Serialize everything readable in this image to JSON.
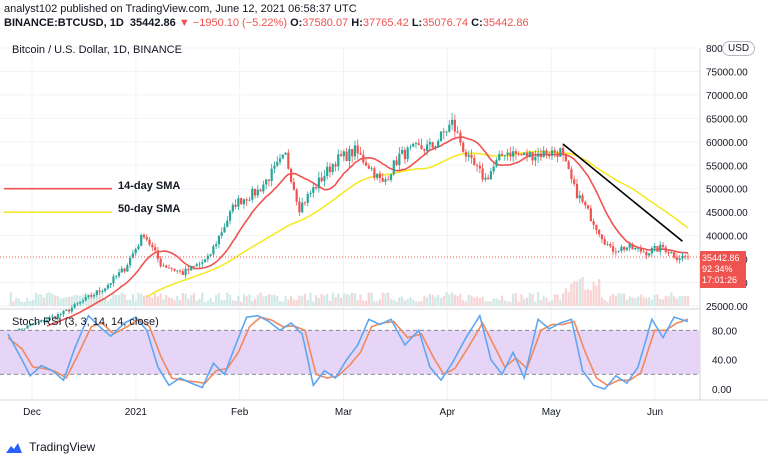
{
  "header": {
    "line1": "analyst102 published on TradingView.com, June 12, 2021 06:58:37 UTC",
    "symbol": "BINANCE:BTCUSD, 1D",
    "last": "35442.86",
    "arrow": "▼",
    "change": "−1950.10 (−5.22%)",
    "o_label": "O:",
    "o": "37580.07",
    "h_label": "H:",
    "h": "37765.42",
    "l_label": "L:",
    "l": "35076.74",
    "c_label": "C:",
    "c": "35442.86"
  },
  "chart_title": "Bitcoin / U.S. Dollar, 1D, BINANCE",
  "currency": "USD",
  "sma14_label": "14-day SMA",
  "sma50_label": "50-day SMA",
  "rsi_title": "Stoch RSI (3, 3, 14, 14, close)",
  "price_tag": {
    "price": "35442.86",
    "pct": "92.34%",
    "timer": "17:01:26"
  },
  "footer": {
    "brand": "TradingView"
  },
  "colors": {
    "up": "#26a69a",
    "down": "#ef5350",
    "sma14": "#ef5350",
    "sma50": "#f5e92a",
    "trendline": "#000000",
    "rsi_k": "#5ea7f0",
    "rsi_d": "#f08a5d",
    "rsi_band": "#e6d5f7"
  },
  "chart_data": [
    {
      "type": "candlestick",
      "title": "Bitcoin / U.S. Dollar, 1D, BINANCE",
      "x_ticks": [
        "Dec",
        "2021",
        "Feb",
        "Mar",
        "Apr",
        "May",
        "Jun"
      ],
      "y_ticks": [
        "25000.00",
        "30000.00",
        "35000.00",
        "40000.00",
        "45000.00",
        "50000.00",
        "55000.00",
        "60000.00",
        "65000.00",
        "70000.00",
        "75000.00",
        "80000.00"
      ],
      "ylim": [
        25000,
        80000
      ],
      "close_start": 19000,
      "close_end": 35442.86,
      "highlight_level": 35442.86,
      "waypoints": [
        [
          0,
          19000
        ],
        [
          20,
          23500
        ],
        [
          35,
          29000
        ],
        [
          42,
          33000
        ],
        [
          49,
          40500
        ],
        [
          55,
          34000
        ],
        [
          63,
          32000
        ],
        [
          72,
          35000
        ],
        [
          82,
          47000
        ],
        [
          90,
          49500
        ],
        [
          100,
          57000
        ],
        [
          105,
          46000
        ],
        [
          112,
          51500
        ],
        [
          118,
          56000
        ],
        [
          125,
          58000
        ],
        [
          130,
          55000
        ],
        [
          135,
          51000
        ],
        [
          141,
          57000
        ],
        [
          147,
          58500
        ],
        [
          153,
          59000
        ],
        [
          160,
          64000
        ],
        [
          166,
          56000
        ],
        [
          172,
          52000
        ],
        [
          179,
          58000
        ],
        [
          186,
          57000
        ],
        [
          192,
          57500
        ],
        [
          199,
          58000
        ],
        [
          204,
          50000
        ],
        [
          211,
          43000
        ],
        [
          217,
          37000
        ],
        [
          223,
          37500
        ],
        [
          230,
          36500
        ],
        [
          236,
          37500
        ],
        [
          241,
          35500
        ],
        [
          245,
          35442.86
        ]
      ],
      "series": [
        {
          "name": "14-day SMA",
          "label_value": 50000
        },
        {
          "name": "50-day SMA",
          "label_value": 45000
        }
      ],
      "trendline": [
        [
          200,
          59500
        ],
        [
          243,
          38800
        ]
      ]
    },
    {
      "type": "line",
      "title": "Stoch RSI (3, 3, 14, 14, close)",
      "y_ticks": [
        "0.00",
        "40.00",
        "80.00"
      ],
      "levels": [
        20,
        80
      ],
      "ylim": [
        -15,
        105
      ],
      "k_waypoints": [
        [
          0,
          75
        ],
        [
          5,
          40
        ],
        [
          8,
          18
        ],
        [
          12,
          32
        ],
        [
          16,
          25
        ],
        [
          20,
          12
        ],
        [
          24,
          55
        ],
        [
          29,
          100
        ],
        [
          33,
          85
        ],
        [
          37,
          72
        ],
        [
          42,
          90
        ],
        [
          46,
          98
        ],
        [
          50,
          80
        ],
        [
          54,
          30
        ],
        [
          58,
          5
        ],
        [
          62,
          15
        ],
        [
          66,
          8
        ],
        [
          70,
          2
        ],
        [
          74,
          35
        ],
        [
          78,
          20
        ],
        [
          82,
          60
        ],
        [
          86,
          98
        ],
        [
          90,
          100
        ],
        [
          94,
          92
        ],
        [
          98,
          80
        ],
        [
          102,
          90
        ],
        [
          106,
          75
        ],
        [
          110,
          5
        ],
        [
          114,
          25
        ],
        [
          118,
          15
        ],
        [
          122,
          40
        ],
        [
          126,
          60
        ],
        [
          130,
          95
        ],
        [
          134,
          88
        ],
        [
          138,
          95
        ],
        [
          143,
          60
        ],
        [
          148,
          80
        ],
        [
          152,
          30
        ],
        [
          156,
          12
        ],
        [
          160,
          35
        ],
        [
          165,
          70
        ],
        [
          170,
          100
        ],
        [
          174,
          40
        ],
        [
          178,
          20
        ],
        [
          182,
          50
        ],
        [
          186,
          15
        ],
        [
          191,
          95
        ],
        [
          195,
          82
        ],
        [
          199,
          90
        ],
        [
          203,
          95
        ],
        [
          207,
          25
        ],
        [
          211,
          5
        ],
        [
          215,
          0
        ],
        [
          219,
          18
        ],
        [
          223,
          8
        ],
        [
          227,
          30
        ],
        [
          232,
          95
        ],
        [
          236,
          70
        ],
        [
          240,
          98
        ],
        [
          245,
          92
        ]
      ],
      "d_waypoints": [
        [
          0,
          70
        ],
        [
          5,
          55
        ],
        [
          9,
          30
        ],
        [
          13,
          28
        ],
        [
          17,
          24
        ],
        [
          21,
          15
        ],
        [
          25,
          45
        ],
        [
          30,
          85
        ],
        [
          34,
          90
        ],
        [
          38,
          75
        ],
        [
          43,
          85
        ],
        [
          47,
          95
        ],
        [
          51,
          85
        ],
        [
          55,
          45
        ],
        [
          59,
          15
        ],
        [
          63,
          12
        ],
        [
          67,
          10
        ],
        [
          71,
          8
        ],
        [
          75,
          25
        ],
        [
          79,
          28
        ],
        [
          83,
          50
        ],
        [
          87,
          85
        ],
        [
          91,
          98
        ],
        [
          95,
          94
        ],
        [
          99,
          85
        ],
        [
          103,
          86
        ],
        [
          107,
          80
        ],
        [
          111,
          20
        ],
        [
          115,
          15
        ],
        [
          119,
          18
        ],
        [
          123,
          32
        ],
        [
          127,
          50
        ],
        [
          131,
          85
        ],
        [
          135,
          90
        ],
        [
          139,
          92
        ],
        [
          144,
          70
        ],
        [
          149,
          75
        ],
        [
          153,
          45
        ],
        [
          157,
          20
        ],
        [
          161,
          28
        ],
        [
          166,
          58
        ],
        [
          171,
          90
        ],
        [
          175,
          60
        ],
        [
          179,
          30
        ],
        [
          183,
          42
        ],
        [
          187,
          28
        ],
        [
          192,
          80
        ],
        [
          196,
          88
        ],
        [
          200,
          88
        ],
        [
          204,
          92
        ],
        [
          208,
          50
        ],
        [
          212,
          15
        ],
        [
          216,
          5
        ],
        [
          220,
          12
        ],
        [
          224,
          12
        ],
        [
          228,
          22
        ],
        [
          233,
          80
        ],
        [
          237,
          80
        ],
        [
          241,
          90
        ],
        [
          245,
          95
        ]
      ]
    }
  ]
}
